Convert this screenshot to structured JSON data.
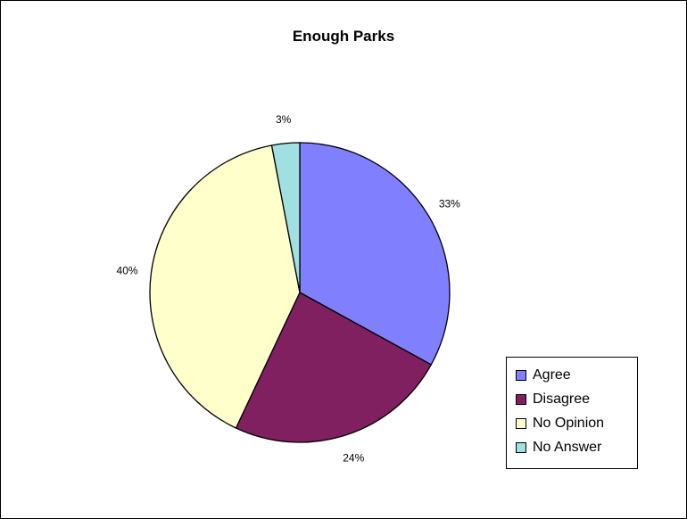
{
  "chart_data": {
    "type": "pie",
    "title": "Enough Parks",
    "categories": [
      "Agree",
      "Disagree",
      "No Opinion",
      "No Answer"
    ],
    "values": [
      33,
      24,
      40,
      3
    ],
    "data_labels": [
      "33%",
      "24%",
      "40%",
      "3%"
    ],
    "colors": [
      "#8080ff",
      "#802060",
      "#ffffcc",
      "#a0e0e0"
    ],
    "legend_position": "bottom-right"
  }
}
